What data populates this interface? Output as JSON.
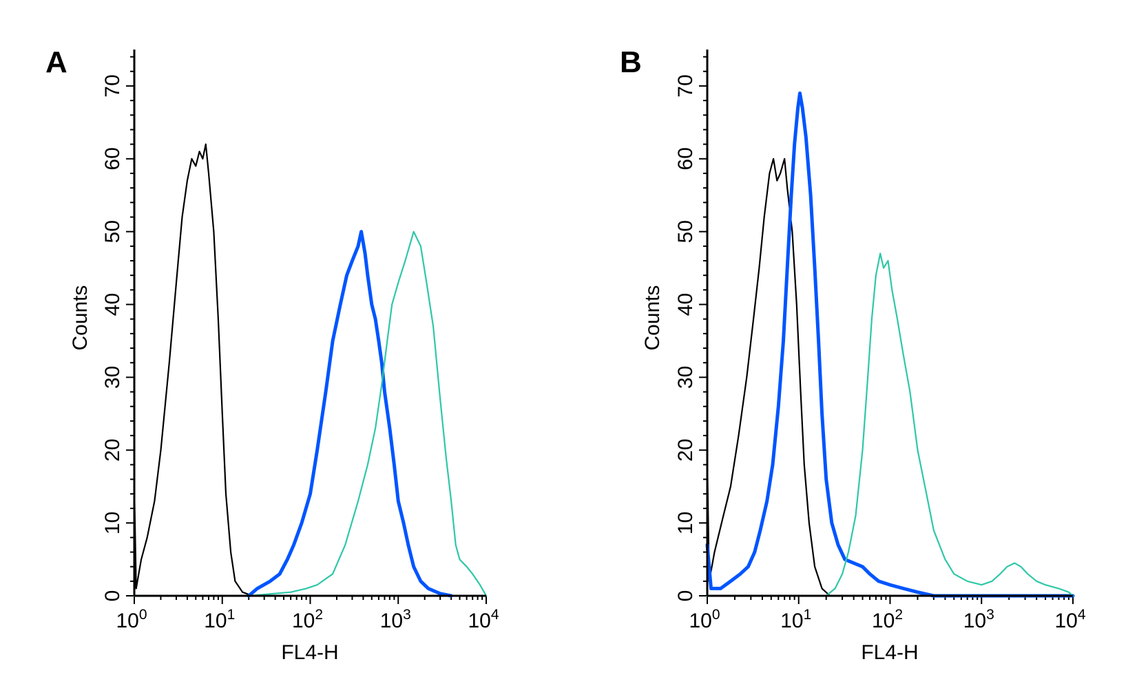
{
  "colors": {
    "unstained": "#000000",
    "target": "#0055ff",
    "control": "#2fc7a8"
  },
  "chart_data": [
    {
      "type": "line",
      "panel": "A",
      "xscale": "log",
      "xlim": [
        1,
        10000
      ],
      "ylim": [
        0,
        75
      ],
      "xlabel": "FL4-H",
      "ylabel": "Counts",
      "x_ticks": [
        {
          "base": "10",
          "exp": "0"
        },
        {
          "base": "10",
          "exp": "1"
        },
        {
          "base": "10",
          "exp": "2"
        },
        {
          "base": "10",
          "exp": "3"
        },
        {
          "base": "10",
          "exp": "4"
        }
      ],
      "y_ticks": [
        "0",
        "10",
        "20",
        "30",
        "40",
        "50",
        "60",
        "70"
      ],
      "series": [
        {
          "color": "#000000",
          "width": 2.2,
          "points": [
            [
              1,
              15
            ],
            [
              1.05,
              1
            ],
            [
              1.2,
              5
            ],
            [
              1.4,
              8
            ],
            [
              1.7,
              13
            ],
            [
              2,
              20
            ],
            [
              2.5,
              32
            ],
            [
              3,
              43
            ],
            [
              3.5,
              52
            ],
            [
              4,
              57
            ],
            [
              4.5,
              60
            ],
            [
              5,
              59
            ],
            [
              5.5,
              61
            ],
            [
              6,
              60
            ],
            [
              6.5,
              62
            ],
            [
              7,
              58
            ],
            [
              8,
              50
            ],
            [
              9,
              38
            ],
            [
              10,
              25
            ],
            [
              11,
              14
            ],
            [
              12.5,
              6
            ],
            [
              14,
              2
            ],
            [
              17,
              0.5
            ],
            [
              22,
              0
            ],
            [
              10000,
              0
            ]
          ]
        },
        {
          "color": "#0055ff",
          "width": 5,
          "points": [
            [
              20,
              0
            ],
            [
              25,
              1
            ],
            [
              35,
              2
            ],
            [
              45,
              3
            ],
            [
              55,
              5
            ],
            [
              65,
              7
            ],
            [
              80,
              10
            ],
            [
              100,
              14
            ],
            [
              120,
              20
            ],
            [
              150,
              28
            ],
            [
              180,
              35
            ],
            [
              220,
              40
            ],
            [
              260,
              44
            ],
            [
              300,
              46
            ],
            [
              350,
              48
            ],
            [
              380,
              50
            ],
            [
              420,
              47
            ],
            [
              450,
              44
            ],
            [
              500,
              40
            ],
            [
              550,
              38
            ],
            [
              600,
              35
            ],
            [
              650,
              32
            ],
            [
              700,
              28
            ],
            [
              800,
              23
            ],
            [
              900,
              18
            ],
            [
              1000,
              13
            ],
            [
              1150,
              10
            ],
            [
              1300,
              7
            ],
            [
              1500,
              4
            ],
            [
              1800,
              2
            ],
            [
              2200,
              1
            ],
            [
              3000,
              0.3
            ],
            [
              4000,
              0
            ]
          ]
        },
        {
          "color": "#2fc7a8",
          "width": 2.2,
          "points": [
            [
              1,
              0
            ],
            [
              20,
              0
            ],
            [
              60,
              0.5
            ],
            [
              90,
              1
            ],
            [
              120,
              1.5
            ],
            [
              180,
              3
            ],
            [
              250,
              7
            ],
            [
              350,
              13
            ],
            [
              450,
              18
            ],
            [
              550,
              23
            ],
            [
              650,
              29
            ],
            [
              750,
              35
            ],
            [
              850,
              40
            ],
            [
              1000,
              43
            ],
            [
              1200,
              46
            ],
            [
              1500,
              50
            ],
            [
              1800,
              48
            ],
            [
              2100,
              43
            ],
            [
              2500,
              37
            ],
            [
              3000,
              27
            ],
            [
              3500,
              19
            ],
            [
              4000,
              13
            ],
            [
              4500,
              7
            ],
            [
              5000,
              5
            ],
            [
              6000,
              4
            ],
            [
              7000,
              3
            ],
            [
              8500,
              1.5
            ],
            [
              10000,
              0
            ]
          ]
        }
      ]
    },
    {
      "type": "line",
      "panel": "B",
      "xscale": "log",
      "xlim": [
        1,
        10000
      ],
      "ylim": [
        0,
        75
      ],
      "xlabel": "FL4-H",
      "ylabel": "Counts",
      "x_ticks": [
        {
          "base": "10",
          "exp": "0"
        },
        {
          "base": "10",
          "exp": "1"
        },
        {
          "base": "10",
          "exp": "2"
        },
        {
          "base": "10",
          "exp": "3"
        },
        {
          "base": "10",
          "exp": "4"
        }
      ],
      "y_ticks": [
        "0",
        "10",
        "20",
        "30",
        "40",
        "50",
        "60",
        "70"
      ],
      "series": [
        {
          "color": "#000000",
          "width": 2.2,
          "points": [
            [
              1,
              19
            ],
            [
              1.05,
              2
            ],
            [
              1.2,
              6
            ],
            [
              1.5,
              11
            ],
            [
              1.8,
              15
            ],
            [
              2.2,
              22
            ],
            [
              2.7,
              30
            ],
            [
              3.2,
              38
            ],
            [
              3.7,
              45
            ],
            [
              4.2,
              52
            ],
            [
              4.8,
              58
            ],
            [
              5.3,
              60
            ],
            [
              5.8,
              57
            ],
            [
              6.3,
              58
            ],
            [
              7,
              60
            ],
            [
              7.5,
              56
            ],
            [
              8.5,
              50
            ],
            [
              9.5,
              40
            ],
            [
              10.5,
              28
            ],
            [
              11.5,
              18
            ],
            [
              13,
              10
            ],
            [
              15,
              4
            ],
            [
              18,
              1
            ],
            [
              22,
              0
            ],
            [
              10000,
              0
            ]
          ]
        },
        {
          "color": "#0055ff",
          "width": 5,
          "points": [
            [
              1,
              7
            ],
            [
              1.1,
              1
            ],
            [
              1.4,
              1
            ],
            [
              1.8,
              2
            ],
            [
              2.3,
              3
            ],
            [
              2.8,
              4
            ],
            [
              3.3,
              6
            ],
            [
              3.8,
              9
            ],
            [
              4.5,
              13
            ],
            [
              5.2,
              18
            ],
            [
              6,
              26
            ],
            [
              6.8,
              35
            ],
            [
              7.5,
              45
            ],
            [
              8.3,
              55
            ],
            [
              9,
              62
            ],
            [
              9.8,
              67
            ],
            [
              10.3,
              69
            ],
            [
              11,
              67
            ],
            [
              12,
              63
            ],
            [
              13.5,
              55
            ],
            [
              15,
              45
            ],
            [
              16.5,
              35
            ],
            [
              18,
              25
            ],
            [
              20,
              16
            ],
            [
              23,
              10
            ],
            [
              27,
              7
            ],
            [
              32,
              5
            ],
            [
              40,
              4.5
            ],
            [
              50,
              4
            ],
            [
              60,
              3
            ],
            [
              75,
              2
            ],
            [
              100,
              1.5
            ],
            [
              140,
              1
            ],
            [
              200,
              0.5
            ],
            [
              300,
              0
            ],
            [
              10000,
              0
            ]
          ]
        },
        {
          "color": "#2fc7a8",
          "width": 2.2,
          "points": [
            [
              1,
              0
            ],
            [
              20,
              0
            ],
            [
              25,
              1
            ],
            [
              30,
              3
            ],
            [
              35,
              6
            ],
            [
              42,
              11
            ],
            [
              50,
              20
            ],
            [
              57,
              30
            ],
            [
              63,
              38
            ],
            [
              70,
              44
            ],
            [
              78,
              47
            ],
            [
              85,
              45
            ],
            [
              95,
              46
            ],
            [
              105,
              42
            ],
            [
              120,
              38
            ],
            [
              140,
              33
            ],
            [
              165,
              28
            ],
            [
              200,
              20
            ],
            [
              250,
              14
            ],
            [
              300,
              9
            ],
            [
              400,
              5
            ],
            [
              500,
              3
            ],
            [
              700,
              2
            ],
            [
              1000,
              1.5
            ],
            [
              1300,
              2
            ],
            [
              1600,
              3
            ],
            [
              1900,
              4
            ],
            [
              2300,
              4.5
            ],
            [
              2700,
              4
            ],
            [
              3200,
              3
            ],
            [
              4000,
              2
            ],
            [
              5000,
              1.5
            ],
            [
              7000,
              1
            ],
            [
              9000,
              0.5
            ],
            [
              10000,
              0
            ]
          ]
        }
      ]
    }
  ]
}
